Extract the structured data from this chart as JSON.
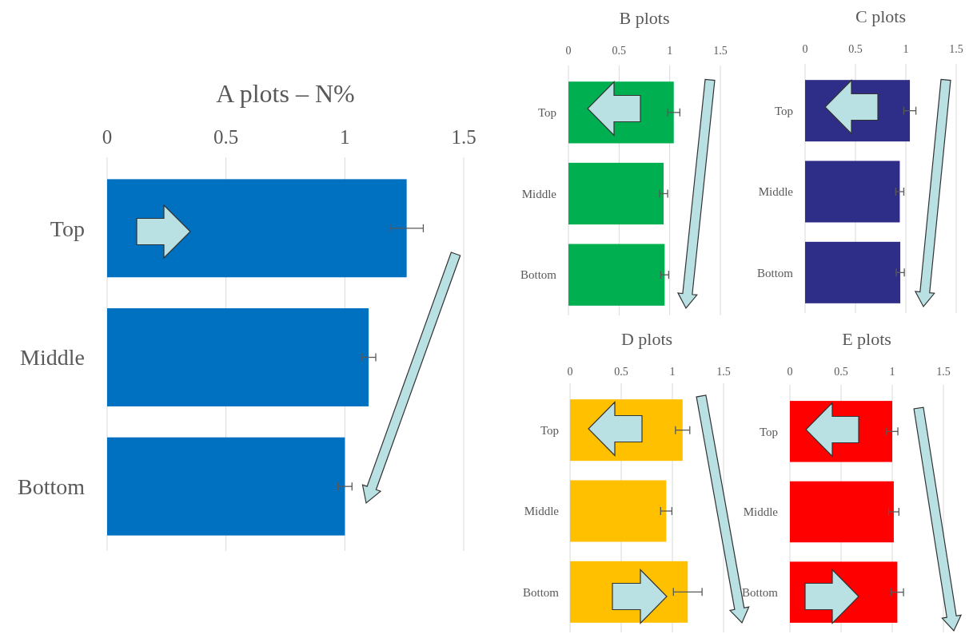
{
  "chart_data": [
    {
      "type": "bar",
      "orientation": "horizontal",
      "title": "A plots – N%",
      "categories": [
        "Top",
        "Middle",
        "Bottom"
      ],
      "values": [
        1.26,
        1.1,
        1.0
      ],
      "errors": [
        0.07,
        0.03,
        0.03
      ],
      "color": "#0070c0",
      "xlim": [
        0,
        1.5
      ],
      "xticks": [
        0,
        0.5,
        1,
        1.5
      ],
      "grid": "x"
    },
    {
      "type": "bar",
      "orientation": "horizontal",
      "title": "B plots",
      "categories": [
        "Top",
        "Middle",
        "Bottom"
      ],
      "values": [
        1.04,
        0.94,
        0.95
      ],
      "errors": [
        0.06,
        0.04,
        0.04
      ],
      "color": "#00b050",
      "xlim": [
        0,
        1.5
      ],
      "xticks": [
        0,
        0.5,
        1,
        1.5
      ],
      "grid": "x"
    },
    {
      "type": "bar",
      "orientation": "horizontal",
      "title": "C plots",
      "categories": [
        "Top",
        "Middle",
        "Bottom"
      ],
      "values": [
        1.04,
        0.94,
        0.945
      ],
      "errors": [
        0.06,
        0.04,
        0.04
      ],
      "color": "#2e2e88",
      "xlim": [
        0,
        1.5
      ],
      "xticks": [
        0,
        0.5,
        1,
        1.5
      ],
      "grid": "x"
    },
    {
      "type": "bar",
      "orientation": "horizontal",
      "title": "D plots",
      "categories": [
        "Top",
        "Middle",
        "Bottom"
      ],
      "values": [
        1.1,
        0.94,
        1.15
      ],
      "errors": [
        0.07,
        0.055,
        0.14
      ],
      "color": "#ffc000",
      "xlim": [
        0,
        1.5
      ],
      "xticks": [
        0,
        0.5,
        1,
        1.5
      ],
      "grid": "x"
    },
    {
      "type": "bar",
      "orientation": "horizontal",
      "title": "E plots",
      "categories": [
        "Top",
        "Middle",
        "Bottom"
      ],
      "values": [
        1.0,
        1.015,
        1.05
      ],
      "errors": [
        0.055,
        0.05,
        0.06
      ],
      "color": "#ff0000",
      "xlim": [
        0,
        1.5
      ],
      "xticks": [
        0,
        0.5,
        1,
        1.5
      ],
      "grid": "x"
    }
  ]
}
